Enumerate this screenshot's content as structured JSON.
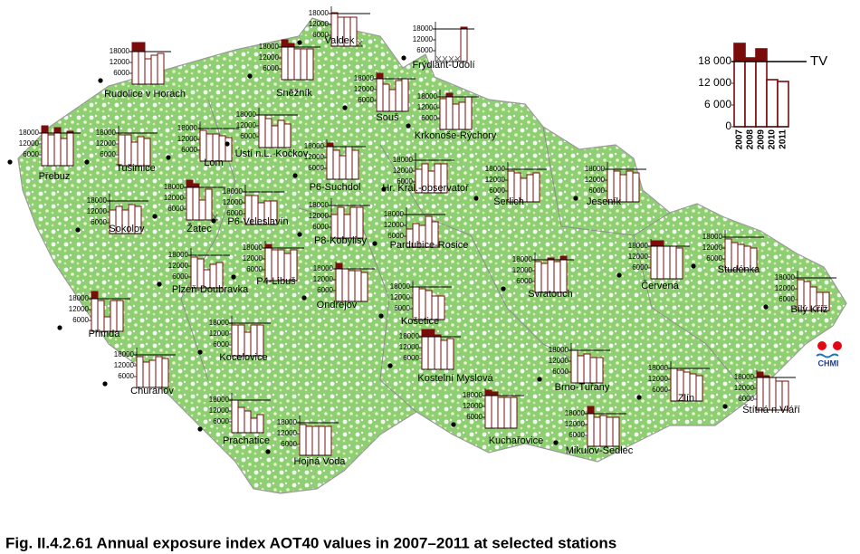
{
  "caption": "Fig. II.4.2.61  Annual exposure index AOT40 values in 2007–2011 at selected stations",
  "logo": "CHMI",
  "chart_data": [
    {
      "type": "bar",
      "categories": [
        "2007",
        "2008",
        "2009",
        "2010",
        "2011"
      ],
      "values": [
        23000,
        19000,
        21500,
        13000,
        12500
      ],
      "ylim": [
        0,
        24000
      ],
      "yticks": [
        0,
        {
          "value": 6000,
          "label": "6 000"
        },
        {
          "value": 12000,
          "label": "12 000"
        },
        {
          "value": 18000,
          "label": "18 000"
        }
      ],
      "threshold": 18000,
      "threshold_label": "TV",
      "color": "#7a0c0c"
    },
    {
      "type": "bar",
      "title": "Valdek",
      "values": [
        18500,
        16000,
        16000,
        16000,
        null
      ],
      "ylim": [
        0,
        24000
      ],
      "yticks": [
        6000,
        12000,
        18000
      ],
      "threshold": 18000
    },
    {
      "type": "bar",
      "title": "Frýdlant-Údolí",
      "values": [
        null,
        null,
        null,
        null,
        19000
      ],
      "ylim": [
        0,
        24000
      ],
      "yticks": [
        6000,
        12000,
        18000
      ],
      "threshold": 18000
    },
    {
      "type": "bar",
      "title": "Rudolice v Horách",
      "values": [
        23000,
        23000,
        14000,
        16000,
        17000
      ],
      "ylim": [
        0,
        24000
      ],
      "yticks": [
        6000,
        12000,
        18000
      ],
      "threshold": 18000
    },
    {
      "type": "bar",
      "title": "Sněžník",
      "values": [
        22000,
        20000,
        17000,
        17000,
        17000
      ],
      "ylim": [
        0,
        24000
      ],
      "yticks": [
        6000,
        12000,
        18000
      ],
      "threshold": 18000
    },
    {
      "type": "bar",
      "title": "Souš",
      "values": [
        21000,
        15000,
        12000,
        17000,
        18000
      ],
      "ylim": [
        0,
        24000
      ],
      "yticks": [
        6000,
        12000,
        18000
      ],
      "threshold": 18000
    },
    {
      "type": "bar",
      "title": "Krkonoše-Rýchory",
      "values": [
        17000,
        20000,
        14000,
        15000,
        18000
      ],
      "ylim": [
        0,
        24000
      ],
      "yticks": [
        6000,
        12000,
        18000
      ],
      "threshold": 18000
    },
    {
      "type": "bar",
      "title": "Přebuz",
      "values": [
        22000,
        17000,
        21000,
        15000,
        19000
      ],
      "ylim": [
        0,
        24000
      ],
      "yticks": [
        6000,
        12000,
        18000
      ],
      "threshold": 18000
    },
    {
      "type": "bar",
      "title": "Tušimice",
      "values": [
        17000,
        17000,
        13000,
        16000,
        15000
      ],
      "ylim": [
        0,
        24000
      ],
      "yticks": [
        6000,
        12000,
        18000
      ],
      "threshold": 18000
    },
    {
      "type": "bar",
      "title": "Lom",
      "values": [
        17000,
        15000,
        15000,
        14000,
        13000
      ],
      "ylim": [
        0,
        24000
      ],
      "yticks": [
        6000,
        12000,
        18000
      ],
      "threshold": 18000
    },
    {
      "type": "bar",
      "title": "Ústí n.L.-Kočkov",
      "values": [
        18000,
        16000,
        12000,
        15000,
        13000
      ],
      "ylim": [
        0,
        24000
      ],
      "yticks": [
        6000,
        12000,
        18000
      ],
      "threshold": 18000
    },
    {
      "type": "bar",
      "title": "P6-Suchdol",
      "values": [
        20000,
        16000,
        13000,
        18000,
        16000
      ],
      "ylim": [
        0,
        24000
      ],
      "yticks": [
        6000,
        12000,
        18000
      ],
      "threshold": 18000
    },
    {
      "type": "bar",
      "title": "Hr. Král.-observatoř",
      "values": [
        13000,
        16000,
        12000,
        16000,
        16000
      ],
      "ylim": [
        0,
        24000
      ],
      "yticks": [
        6000,
        12000,
        18000
      ],
      "threshold": 18000
    },
    {
      "type": "bar",
      "title": "Šerlich",
      "values": [
        17000,
        16000,
        13000,
        15000,
        16000
      ],
      "ylim": [
        0,
        24000
      ],
      "yticks": [
        6000,
        12000,
        18000
      ],
      "threshold": 18000
    },
    {
      "type": "bar",
      "title": "Jeseník",
      "values": [
        18000,
        17000,
        15000,
        17000,
        16000
      ],
      "ylim": [
        0,
        24000
      ],
      "yticks": [
        6000,
        12000,
        18000
      ],
      "threshold": 18000
    },
    {
      "type": "bar",
      "title": "Žatec",
      "values": [
        22000,
        20000,
        11000,
        17000,
        null
      ],
      "ylim": [
        0,
        24000
      ],
      "yticks": [
        6000,
        12000,
        18000
      ],
      "threshold": 18000
    },
    {
      "type": "bar",
      "title": "Sokolov",
      "values": [
        13000,
        15000,
        13000,
        16000,
        15000
      ],
      "ylim": [
        0,
        24000
      ],
      "yticks": [
        6000,
        12000,
        18000
      ],
      "threshold": 18000
    },
    {
      "type": "bar",
      "title": "P6-Veleslavín",
      "values": [
        16000,
        16000,
        12000,
        13000,
        13000
      ],
      "ylim": [
        0,
        24000
      ],
      "yticks": [
        6000,
        12000,
        18000
      ],
      "threshold": 18000
    },
    {
      "type": "bar",
      "title": "P8-Kobylisy",
      "values": [
        13000,
        17000,
        13000,
        17000,
        17000
      ],
      "ylim": [
        0,
        24000
      ],
      "yticks": [
        6000,
        12000,
        18000
      ],
      "threshold": 18000
    },
    {
      "type": "bar",
      "title": "Pardubice-Rosice",
      "values": [
        10000,
        13000,
        12000,
        17000,
        14000
      ],
      "ylim": [
        0,
        24000
      ],
      "yticks": [
        6000,
        12000,
        18000
      ],
      "threshold": 18000
    },
    {
      "type": "bar",
      "title": "Plzeň-Doubravka",
      "values": [
        17000,
        16000,
        10000,
        13000,
        14000
      ],
      "ylim": [
        0,
        24000
      ],
      "yticks": [
        6000,
        12000,
        18000
      ],
      "threshold": 18000
    },
    {
      "type": "bar",
      "title": "P4-Libuš",
      "values": [
        20000,
        17000,
        17000,
        15000,
        17000
      ],
      "ylim": [
        0,
        24000
      ],
      "yticks": [
        6000,
        12000,
        18000
      ],
      "threshold": 18000
    },
    {
      "type": "bar",
      "title": "Svratouch",
      "values": [
        17000,
        16000,
        19000,
        17000,
        20000
      ],
      "ylim": [
        0,
        24000
      ],
      "yticks": [
        6000,
        12000,
        18000
      ],
      "threshold": 18000
    },
    {
      "type": "bar",
      "title": "Červená",
      "values": [
        21000,
        21000,
        18000,
        18000,
        17000
      ],
      "ylim": [
        0,
        24000
      ],
      "yticks": [
        6000,
        12000,
        18000
      ],
      "threshold": 18000
    },
    {
      "type": "bar",
      "title": "Studénka",
      "values": [
        17000,
        15000,
        14000,
        13000,
        12000
      ],
      "ylim": [
        0,
        24000
      ],
      "yticks": [
        6000,
        12000,
        18000
      ],
      "threshold": 18000
    },
    {
      "type": "bar",
      "title": "Bílý Kříž",
      "values": [
        17000,
        16000,
        13000,
        10000,
        10000
      ],
      "ylim": [
        0,
        24000
      ],
      "yticks": [
        6000,
        12000,
        18000
      ],
      "threshold": 18000
    },
    {
      "type": "bar",
      "title": "Přimda",
      "values": [
        22000,
        17000,
        8000,
        17000,
        17000
      ],
      "ylim": [
        0,
        24000
      ],
      "yticks": [
        6000,
        12000,
        18000
      ],
      "threshold": 18000
    },
    {
      "type": "bar",
      "title": "Ondřejov",
      "values": [
        21000,
        18000,
        17000,
        17000,
        16000
      ],
      "ylim": [
        0,
        24000
      ],
      "yticks": [
        6000,
        12000,
        18000
      ],
      "threshold": 18000
    },
    {
      "type": "bar",
      "title": "Košetice",
      "values": [
        18000,
        17000,
        16000,
        13000,
        13000
      ],
      "ylim": [
        0,
        24000
      ],
      "yticks": [
        6000,
        12000,
        18000
      ],
      "threshold": 18000
    },
    {
      "type": "bar",
      "title": "Kocelovice",
      "values": [
        17000,
        17000,
        13000,
        17000,
        17000
      ],
      "ylim": [
        0,
        24000
      ],
      "yticks": [
        6000,
        12000,
        18000
      ],
      "threshold": 18000
    },
    {
      "type": "bar",
      "title": "Kostelní Myslová",
      "values": [
        22000,
        22000,
        19000,
        16000,
        17000
      ],
      "ylim": [
        0,
        24000
      ],
      "yticks": [
        6000,
        12000,
        18000
      ],
      "threshold": 18000
    },
    {
      "type": "bar",
      "title": "Churáňov",
      "values": [
        17000,
        14000,
        15000,
        17000,
        16000
      ],
      "ylim": [
        0,
        24000
      ],
      "yticks": [
        6000,
        12000,
        18000
      ],
      "threshold": 18000
    },
    {
      "type": "bar",
      "title": "Brno-Tuřany",
      "values": [
        18000,
        15000,
        16000,
        14000,
        14000
      ],
      "ylim": [
        0,
        24000
      ],
      "yticks": [
        6000,
        12000,
        18000
      ],
      "threshold": 18000
    },
    {
      "type": "bar",
      "title": "Zlín",
      "values": [
        18000,
        17000,
        16000,
        15000,
        14000
      ],
      "ylim": [
        0,
        24000
      ],
      "yticks": [
        6000,
        12000,
        18000
      ],
      "threshold": 18000
    },
    {
      "type": "bar",
      "title": "Štítná n.Vláří",
      "values": [
        21000,
        19000,
        18000,
        16000,
        16000
      ],
      "ylim": [
        0,
        24000
      ],
      "yticks": [
        6000,
        12000,
        18000
      ],
      "threshold": 18000
    },
    {
      "type": "bar",
      "title": "Prachatice",
      "values": [
        18000,
        14000,
        12000,
        8000,
        10000
      ],
      "ylim": [
        0,
        24000
      ],
      "yticks": [
        6000,
        12000,
        18000
      ],
      "threshold": 18000
    },
    {
      "type": "bar",
      "title": "Kuchařovice",
      "values": [
        21000,
        20000,
        17000,
        17000,
        17000
      ],
      "ylim": [
        0,
        24000
      ],
      "yticks": [
        6000,
        12000,
        18000
      ],
      "threshold": 18000
    },
    {
      "type": "bar",
      "title": "Mikulov-Sedlec",
      "values": [
        22000,
        16000,
        17000,
        16000,
        16000
      ],
      "ylim": [
        0,
        24000
      ],
      "yticks": [
        6000,
        12000,
        18000
      ],
      "threshold": 18000
    },
    {
      "type": "bar",
      "title": "Hojná Voda",
      "values": [
        17000,
        16000,
        16000,
        16000,
        16000
      ],
      "ylim": [
        0,
        24000
      ],
      "yticks": [
        6000,
        12000,
        18000
      ],
      "threshold": 18000
    }
  ]
}
